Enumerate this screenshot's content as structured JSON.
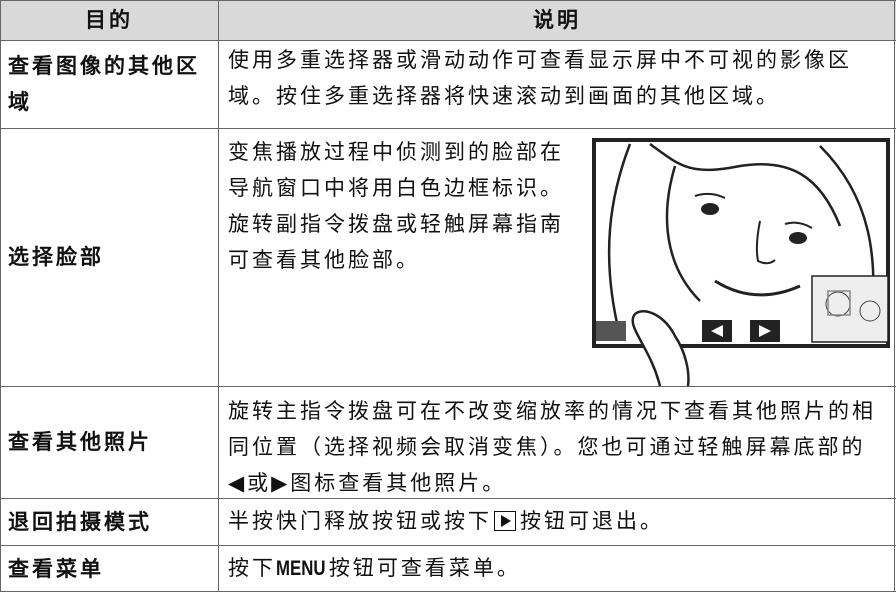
{
  "table": {
    "header": [
      "目的",
      "说明"
    ],
    "rows": [
      {
        "label": "查看图像的其他区域",
        "lines": [
          "使用多重选择器或滑动动作可查看显示屏中不可视的影像区",
          "域。按住多重选择器将快速滚动到画面的其他区域。"
        ]
      },
      {
        "label": "选择脸部",
        "lines": [
          "变焦播放过程中侦测到的脸部在",
          "导航窗口中将用白色边框标识。",
          "旋转副指令拨盘或轻触屏幕指南",
          "可查看其他脸部。"
        ]
      },
      {
        "label": "查看其他照片",
        "lines": [
          "旋转主指令拨盘可在不改变缩放率的情况下查看其他照片的相",
          "同位置（选择视频会取消变焦）。您也可通过轻触屏幕底部的",
          "◀或▶图标查看其他照片。"
        ]
      },
      {
        "label": "退回拍摄模式",
        "parts": [
          "半按快门释放按钮或按下",
          "按钮可退出。"
        ]
      },
      {
        "label": "查看菜单",
        "parts": [
          "按下",
          "MENU",
          "按钮可查看菜单。"
        ]
      }
    ]
  }
}
